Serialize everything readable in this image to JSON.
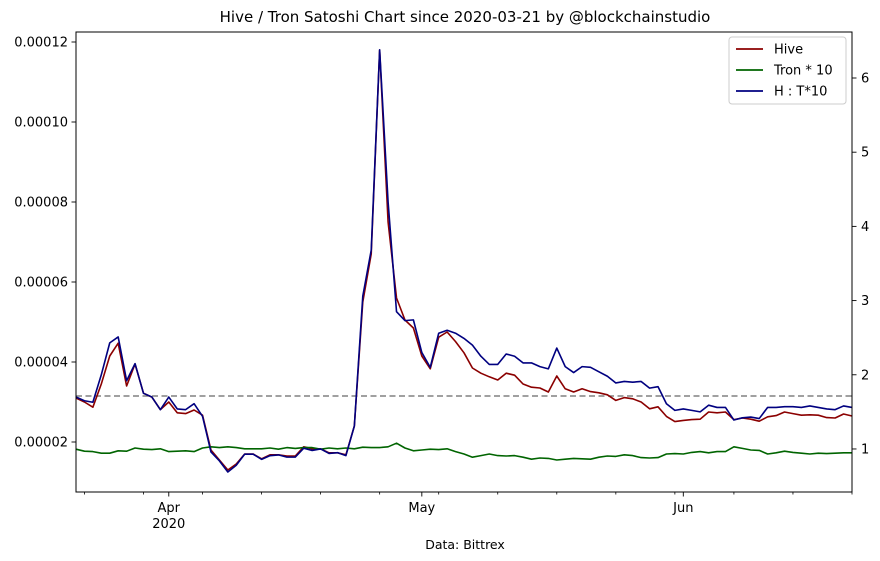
{
  "chart_data": {
    "type": "line",
    "title": "Hive / Tron Satoshi Chart since 2020-03-21 by @blockchainstudio",
    "xlabel": "Data: Bittrex",
    "start_date": "2020-03-21",
    "end_date": "2020-06-21",
    "x_ticks": [
      {
        "date": "2020-04-01",
        "label": "Apr",
        "sub": "2020"
      },
      {
        "date": "2020-05-01",
        "label": "May",
        "sub": ""
      },
      {
        "date": "2020-06-01",
        "label": "Jun",
        "sub": ""
      }
    ],
    "y_left": {
      "ylim": [
        7.5e-06,
        0.0001225
      ],
      "ticks": [
        "0.00002",
        "0.00004",
        "0.00006",
        "0.00008",
        "0.00010",
        "0.00012"
      ]
    },
    "y_right": {
      "ylim": [
        0.42,
        6.62
      ],
      "ticks": [
        "1",
        "2",
        "3",
        "4",
        "5",
        "6"
      ]
    },
    "reference_line": {
      "axis": "left",
      "value": 3.15e-05,
      "color": "#808080",
      "style": "dashed"
    },
    "legend": {
      "placement": "top-right"
    },
    "series": [
      {
        "name": "Hive",
        "axis": "left",
        "color": "#8b0000",
        "values": [
          [
            3.1e-05,
            3e-05,
            2.87e-05,
            3.45e-05,
            4.15e-05,
            4.47e-05,
            3.4e-05,
            3.95e-05,
            3.22e-05,
            3.12e-05,
            2.81e-05,
            3e-05,
            2.73e-05,
            2.71e-05,
            2.8e-05,
            2.67e-05,
            1.8e-05,
            1.55e-05,
            1.3e-05,
            1.45e-05,
            1.7e-05,
            1.7e-05,
            1.58e-05,
            1.68e-05,
            1.68e-05,
            1.65e-05,
            1.65e-05,
            1.88e-05,
            1.83e-05,
            1.83e-05,
            1.73e-05,
            1.73e-05,
            1.68e-05,
            2.4e-05,
            5.5e-05,
            6.7e-05,
            0.000118,
            7.5e-05,
            5.6e-05,
            5.05e-05,
            4.85e-05,
            4.15e-05,
            3.83e-05,
            4.62e-05,
            4.75e-05,
            4.51e-05,
            4.23e-05,
            3.85e-05,
            3.72e-05,
            3.63e-05,
            3.55e-05,
            3.72e-05,
            3.67e-05,
            3.45e-05,
            3.37e-05,
            3.35e-05,
            3.25e-05,
            3.65e-05,
            3.33e-05,
            3.25e-05,
            3.33e-05,
            3.26e-05,
            3.23e-05,
            3.18e-05,
            3.04e-05,
            3.11e-05,
            3.08e-05,
            3e-05,
            2.83e-05,
            2.88e-05,
            2.64e-05,
            2.51e-05,
            2.54e-05,
            2.56e-05,
            2.57e-05,
            2.75e-05,
            2.73e-05,
            2.75e-05,
            2.56e-05,
            2.6e-05,
            2.57e-05,
            2.52e-05,
            2.63e-05,
            2.66e-05,
            2.75e-05,
            2.71e-05,
            2.67e-05,
            2.68e-05,
            2.67e-05,
            2.61e-05,
            2.6e-05,
            2.7e-05,
            2.65e-05
          ]
        ]
      },
      {
        "name": "Tron * 10",
        "axis": "left",
        "color": "#006400",
        "values": [
          [
            1.82e-05,
            1.77e-05,
            1.76e-05,
            1.72e-05,
            1.72e-05,
            1.78e-05,
            1.77e-05,
            1.85e-05,
            1.82e-05,
            1.81e-05,
            1.83e-05,
            1.76e-05,
            1.77e-05,
            1.78e-05,
            1.76e-05,
            1.85e-05,
            1.88e-05,
            1.86e-05,
            1.88e-05,
            1.86e-05,
            1.83e-05,
            1.83e-05,
            1.83e-05,
            1.85e-05,
            1.82e-05,
            1.86e-05,
            1.84e-05,
            1.86e-05,
            1.86e-05,
            1.82e-05,
            1.85e-05,
            1.83e-05,
            1.85e-05,
            1.83e-05,
            1.87e-05,
            1.86e-05,
            1.86e-05,
            1.88e-05,
            1.97e-05,
            1.85e-05,
            1.78e-05,
            1.8e-05,
            1.82e-05,
            1.81e-05,
            1.83e-05,
            1.76e-05,
            1.7e-05,
            1.62e-05,
            1.66e-05,
            1.7e-05,
            1.66e-05,
            1.65e-05,
            1.66e-05,
            1.62e-05,
            1.57e-05,
            1.6e-05,
            1.59e-05,
            1.55e-05,
            1.57e-05,
            1.59e-05,
            1.58e-05,
            1.57e-05,
            1.62e-05,
            1.65e-05,
            1.64e-05,
            1.68e-05,
            1.66e-05,
            1.61e-05,
            1.6e-05,
            1.61e-05,
            1.7e-05,
            1.71e-05,
            1.7e-05,
            1.74e-05,
            1.76e-05,
            1.73e-05,
            1.76e-05,
            1.76e-05,
            1.88e-05,
            1.84e-05,
            1.8e-05,
            1.79e-05,
            1.7e-05,
            1.73e-05,
            1.77e-05,
            1.74e-05,
            1.72e-05,
            1.7e-05,
            1.72e-05,
            1.71e-05,
            1.72e-05,
            1.73e-05,
            1.73e-05
          ]
        ]
      },
      {
        "name": "H : T*10",
        "axis": "right",
        "color": "#000080",
        "values": [
          [
            1.7,
            1.65,
            1.63,
            2.0,
            2.43,
            2.51,
            1.92,
            2.15,
            1.75,
            1.7,
            1.53,
            1.7,
            1.54,
            1.53,
            1.61,
            1.44,
            0.96,
            0.84,
            0.69,
            0.78,
            0.93,
            0.93,
            0.86,
            0.91,
            0.92,
            0.89,
            0.89,
            1.01,
            0.98,
            1.0,
            0.94,
            0.95,
            0.91,
            1.31,
            3.06,
            3.68,
            6.38,
            4.33,
            2.85,
            2.73,
            2.74,
            2.3,
            2.1,
            2.56,
            2.6,
            2.56,
            2.49,
            2.4,
            2.25,
            2.14,
            2.14,
            2.28,
            2.25,
            2.16,
            2.16,
            2.11,
            2.08,
            2.36,
            2.11,
            2.03,
            2.11,
            2.1,
            2.04,
            1.98,
            1.89,
            1.91,
            1.9,
            1.91,
            1.82,
            1.84,
            1.61,
            1.52,
            1.54,
            1.52,
            1.5,
            1.59,
            1.56,
            1.56,
            1.39,
            1.42,
            1.43,
            1.41,
            1.56,
            1.56,
            1.57,
            1.57,
            1.56,
            1.58,
            1.56,
            1.54,
            1.53,
            1.58,
            1.56
          ]
        ]
      }
    ]
  }
}
